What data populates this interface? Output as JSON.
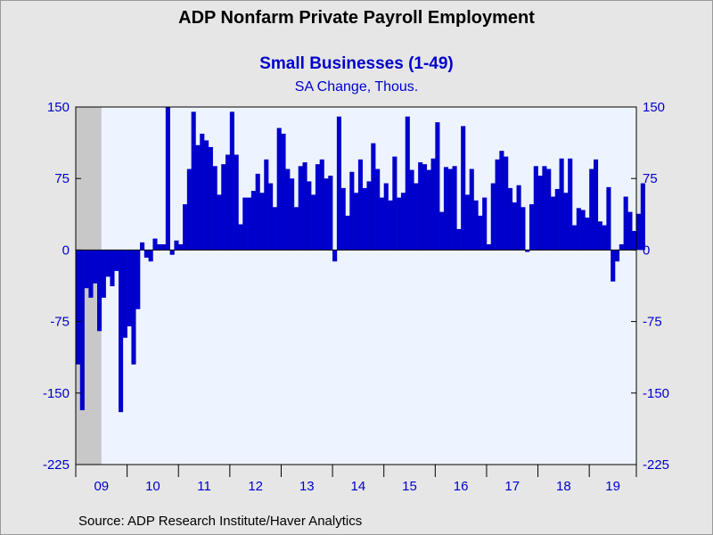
{
  "header": {
    "title": "ADP Nonfarm Private Payroll Employment",
    "subtitle": "Small Businesses (1-49)",
    "units": "SA Change, Thous."
  },
  "footer": {
    "source": "Source:  ADP Research Institute/Haver Analytics"
  },
  "colors": {
    "bar": "#0000cc",
    "plot_background": "#eef4ff",
    "recession_shade": "#c8c8c8",
    "text_accent": "#0000cc"
  },
  "chart_data": {
    "type": "bar",
    "title": "ADP Nonfarm Private Payroll Employment",
    "subtitle": "Small Businesses (1-49)",
    "ylabel": "SA Change, Thous.",
    "ylim": [
      -225,
      150
    ],
    "yticks": [
      150,
      75,
      0,
      -75,
      -150,
      -225
    ],
    "ytick_labels": [
      "150",
      "75",
      "0",
      "-75",
      "-150",
      "-225"
    ],
    "x_start": "2009-01",
    "x_end": "2019-11",
    "year_tick_labels": [
      "09",
      "10",
      "11",
      "12",
      "13",
      "14",
      "15",
      "16",
      "17",
      "18",
      "19"
    ],
    "recession_shading": {
      "start": "2009-01",
      "end": "2009-06"
    },
    "grid": false,
    "series": [
      {
        "values": [
          -120,
          -168,
          -40,
          -50,
          -35,
          -85,
          -50,
          -28,
          -38,
          -22,
          -170,
          -92,
          -80,
          -120,
          -62,
          8,
          -8,
          -12,
          12,
          6,
          6,
          150,
          -5,
          10,
          6,
          48,
          85,
          145,
          110,
          122,
          115,
          108,
          88,
          58,
          90,
          100,
          145,
          100,
          27,
          55,
          55,
          62,
          80,
          60,
          95,
          70,
          45,
          128,
          122,
          85,
          75,
          45,
          88,
          92,
          72,
          58,
          90,
          95,
          75,
          78,
          -12,
          140,
          65,
          36,
          82,
          60,
          95,
          65,
          72,
          112,
          85,
          55,
          70,
          52,
          98,
          55,
          60,
          140,
          84,
          70,
          92,
          90,
          84,
          96,
          134,
          40,
          87,
          85,
          88,
          22,
          130,
          58,
          85,
          52,
          36,
          55,
          6,
          70,
          95,
          104,
          98,
          65,
          50,
          68,
          45,
          -2,
          48,
          88,
          78,
          88,
          85,
          56,
          64,
          96,
          60,
          96,
          26,
          44,
          42,
          34,
          85,
          95,
          30,
          26,
          66,
          -33,
          -12,
          6,
          56,
          40,
          20,
          38,
          70
        ]
      }
    ]
  }
}
